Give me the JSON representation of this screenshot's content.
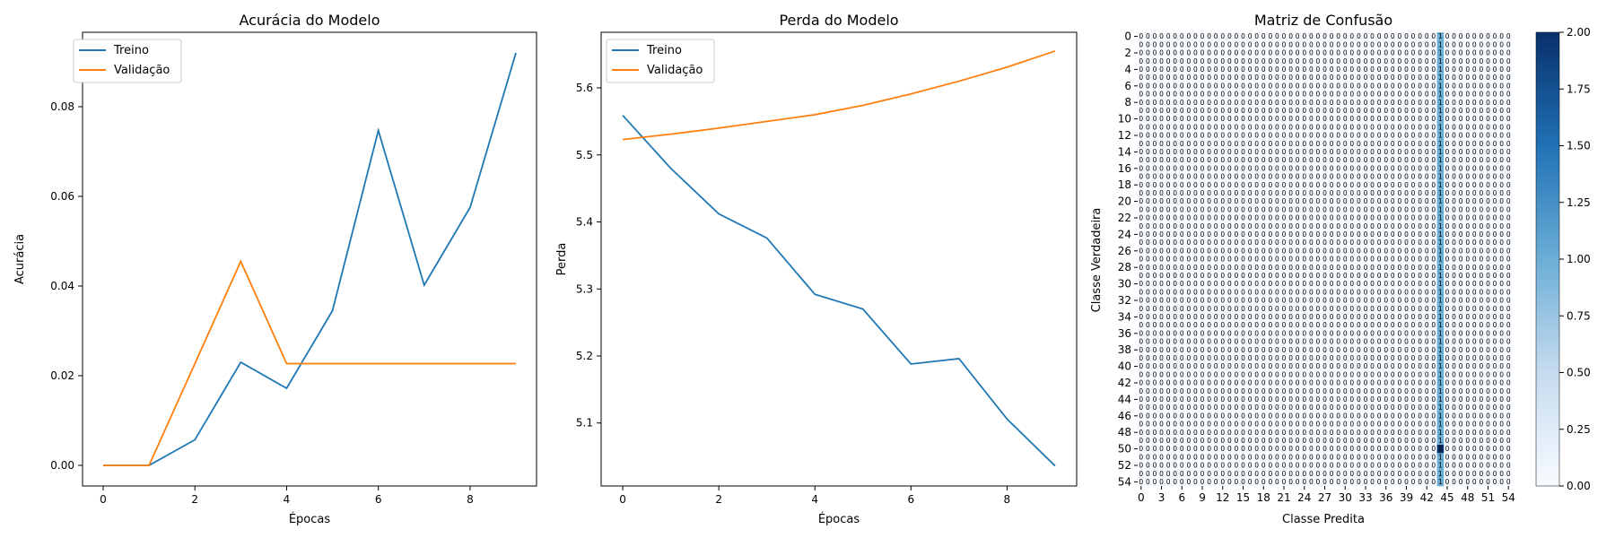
{
  "chart_data": [
    {
      "type": "line",
      "title": "Acurácia do Modelo",
      "xlabel": "Épocas",
      "ylabel": "Acurácia",
      "legend": "top-left",
      "xlim": [
        -0.45,
        9.45
      ],
      "ylim": [
        -0.0046,
        0.0966
      ],
      "xticks": [
        0,
        2,
        4,
        6,
        8
      ],
      "xtick_labels": [
        "0",
        "2",
        "4",
        "6",
        "8"
      ],
      "yticks": [
        0.0,
        0.02,
        0.04,
        0.06,
        0.08
      ],
      "ytick_labels": [
        "0.00",
        "0.02",
        "0.04",
        "0.06",
        "0.08"
      ],
      "x": [
        0,
        1,
        2,
        3,
        4,
        5,
        6,
        7,
        8,
        9
      ],
      "series": [
        {
          "name": "Treino",
          "color": "#1f77b4",
          "values": [
            0.0,
            0.0,
            0.0057,
            0.023,
            0.0172,
            0.0345,
            0.0747,
            0.0402,
            0.0575,
            0.092
          ]
        },
        {
          "name": "Validação",
          "color": "#ff7f0e",
          "values": [
            0.0,
            0.0,
            0.0227,
            0.0455,
            0.0227,
            0.0227,
            0.0227,
            0.0227,
            0.0227,
            0.0227
          ]
        }
      ]
    },
    {
      "type": "line",
      "title": "Perda do Modelo",
      "xlabel": "Épocas",
      "ylabel": "Perda",
      "legend": "top-left",
      "xlim": [
        -0.45,
        9.45
      ],
      "ylim": [
        5.006,
        5.683
      ],
      "xticks": [
        0,
        2,
        4,
        6,
        8
      ],
      "xtick_labels": [
        "0",
        "2",
        "4",
        "6",
        "8"
      ],
      "yticks": [
        5.1,
        5.2,
        5.3,
        5.4,
        5.5,
        5.6
      ],
      "ytick_labels": [
        "5.1",
        "5.2",
        "5.3",
        "5.4",
        "5.5",
        "5.6"
      ],
      "x": [
        0,
        1,
        2,
        3,
        4,
        5,
        6,
        7,
        8,
        9
      ],
      "series": [
        {
          "name": "Treino",
          "color": "#1f77b4",
          "values": [
            5.559,
            5.48,
            5.412,
            5.376,
            5.292,
            5.27,
            5.188,
            5.196,
            5.106,
            5.036
          ]
        },
        {
          "name": "Validação",
          "color": "#ff7f0e",
          "values": [
            5.523,
            5.531,
            5.54,
            5.55,
            5.56,
            5.574,
            5.591,
            5.61,
            5.631,
            5.655
          ]
        }
      ]
    },
    {
      "type": "heatmap",
      "title": "Matriz de Confusão",
      "xlabel": "Classe Predita",
      "ylabel": "Classe Verdadeira",
      "n_classes": 55,
      "xtick_labels": [
        "0",
        "3",
        "6",
        "9",
        "12",
        "15",
        "18",
        "21",
        "24",
        "27",
        "30",
        "33",
        "36",
        "39",
        "42",
        "45",
        "48",
        "51",
        "54"
      ],
      "ytick_labels": [
        "0",
        "2",
        "4",
        "6",
        "8",
        "10",
        "12",
        "14",
        "16",
        "18",
        "20",
        "22",
        "24",
        "26",
        "28",
        "30",
        "32",
        "34",
        "36",
        "38",
        "40",
        "42",
        "44",
        "46",
        "48",
        "50",
        "52",
        "54"
      ],
      "colormap": "Blues",
      "vmin": 0,
      "vmax": 2,
      "colorbar_ticks": [
        "0.00",
        "0.25",
        "0.50",
        "0.75",
        "1.00",
        "1.25",
        "1.50",
        "1.75",
        "2.00"
      ],
      "cell_annotation_default": "0",
      "predicted_column": 44,
      "predicted_column_counts": {
        "default": 1,
        "50": 2
      },
      "colors": {
        "low": "#f7fbff",
        "mid": "#6baed6",
        "high": "#08306b"
      }
    }
  ]
}
